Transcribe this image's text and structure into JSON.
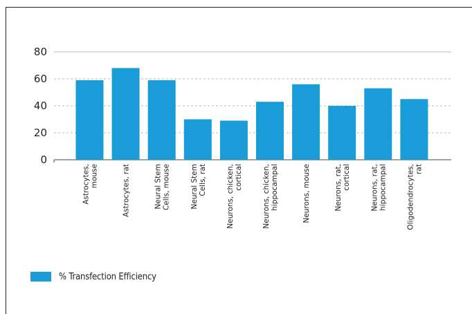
{
  "colors": {
    "bar": "#1a9cd8",
    "gridline": "#b8b8b8",
    "axis": "#444444",
    "text": "#222222"
  },
  "legend": {
    "label": "% Transfection Efficiency"
  },
  "chart_data": {
    "type": "bar",
    "title": "",
    "xlabel": "",
    "ylabel": "",
    "ylim": [
      0,
      80
    ],
    "yticks": [
      0,
      20,
      40,
      60,
      80
    ],
    "grid": true,
    "legend_position": "bottom-left",
    "categories": [
      [
        "Astrocytes,",
        "mouse"
      ],
      [
        "Astrocytes, rat"
      ],
      [
        "Neural Stem",
        "Cells, mouse"
      ],
      [
        "Neural Stem",
        "Cells, rat"
      ],
      [
        "Neurons, chicken,",
        "cortical"
      ],
      [
        "Neurons, chicken,",
        "hippocampal"
      ],
      [
        "Neurons, mouse"
      ],
      [
        "Neurons, rat,",
        "cortical"
      ],
      [
        "Neurons, rat,",
        "hippocampal"
      ],
      [
        "Oligodendrocytes,",
        "rat"
      ]
    ],
    "series": [
      {
        "name": "% Transfection Efficiency",
        "values": [
          59,
          68,
          59,
          30,
          29,
          43,
          56,
          40,
          53,
          45
        ]
      }
    ]
  }
}
